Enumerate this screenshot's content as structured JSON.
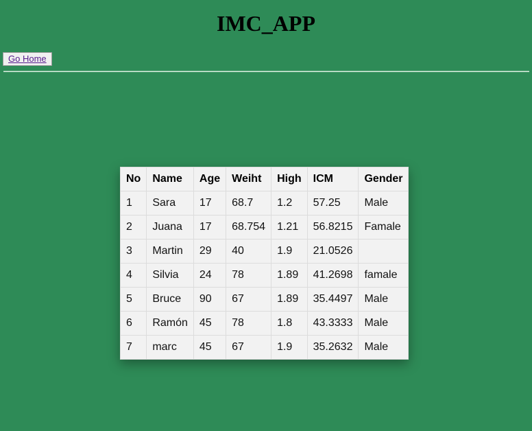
{
  "header": {
    "title": "IMC_APP"
  },
  "nav": {
    "home_label": "Go Home"
  },
  "table": {
    "columns": [
      "No",
      "Name",
      "Age",
      "Weiht",
      "High",
      "ICM",
      "Gender"
    ],
    "rows": [
      [
        "1",
        "Sara",
        "17",
        "68.7",
        "1.2",
        "57.25",
        "Male"
      ],
      [
        "2",
        "Juana",
        "17",
        "68.754",
        "1.21",
        "56.8215",
        "Famale"
      ],
      [
        "3",
        "Martin",
        "29",
        "40",
        "1.9",
        "21.0526",
        ""
      ],
      [
        "4",
        "Silvia",
        "24",
        "78",
        "1.89",
        "41.2698",
        "famale"
      ],
      [
        "5",
        "Bruce",
        "90",
        "67",
        "1.89",
        "35.4497",
        "Male"
      ],
      [
        "6",
        "Ramón",
        "45",
        "78",
        "1.8",
        "43.3333",
        "Male"
      ],
      [
        "7",
        "marc",
        "45",
        "67",
        "1.9",
        "35.2632",
        "Male"
      ]
    ]
  }
}
